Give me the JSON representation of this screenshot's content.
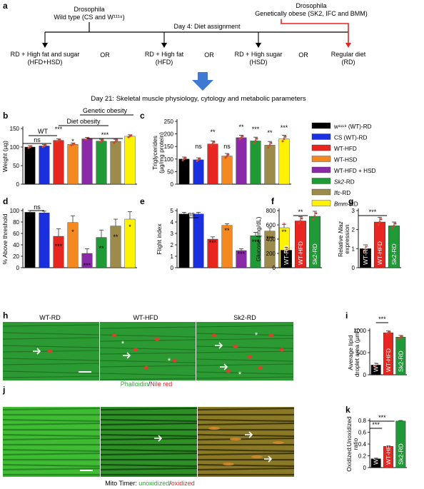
{
  "panel_letters": [
    "a",
    "b",
    "c",
    "d",
    "e",
    "f",
    "g",
    "h",
    "i",
    "j",
    "k"
  ],
  "colors": {
    "wt_rd": "#000000",
    "cs_rd": "#1a2fe0",
    "wt_hfd": "#e8251f",
    "wt_hsd": "#f5891f",
    "wt_hfd_hsd": "#8a2aa8",
    "sk2_rd": "#1f9a37",
    "ifc_rd": "#9c8b4a",
    "bmm_rd": "#fff200",
    "error_dots": "#e8251f",
    "arrow_blue": "#3f79d1",
    "flow_red": "#e8251f",
    "muscle_green": "#2c9a33",
    "lipid_red": "#d2452c"
  },
  "panel_a": {
    "left_group": [
      "Drosophila",
      "Wild type (CS and W¹¹¹⁸)"
    ],
    "right_group": [
      "Drosophila",
      "Genetically obese (SK2, IFC and BMM)"
    ],
    "day4": "Day 4: Diet assignment",
    "diets": [
      "RD + High fat and sugar",
      "(HFD+HSD)",
      "RD + High fat",
      "(HFD)",
      "RD + High sugar",
      "(HSD)",
      "Regular diet",
      "(RD)"
    ],
    "or_label": "OR",
    "day21": "Day 21: Skeletal muscle physiology, cytology and metabolic parameters"
  },
  "legend": {
    "items": [
      {
        "label": "w¹¹¹⁸ (WT)-RD",
        "color": "#000000"
      },
      {
        "label": "CS (WT)-RD",
        "color": "#1a2fe0"
      },
      {
        "label": "WT-HFD",
        "color": "#e8251f"
      },
      {
        "label": "WT-HSD",
        "color": "#f5891f"
      },
      {
        "label": "WT-HFD + HSD",
        "color": "#8a2aa8"
      },
      {
        "label": "Sk2-RD",
        "color": "#1f9a37"
      },
      {
        "label": "Ifc-RD",
        "color": "#9c8b4a"
      },
      {
        "label": "Bmm-RD",
        "color": "#fff200"
      }
    ]
  },
  "panel_b_annotations": {
    "wt": "WT",
    "diet_obesity": "Diet obesity",
    "genetic_obesity": "Genetic obesity"
  },
  "panel_h": {
    "labels": [
      "WT-RD",
      "WT-HFD",
      "Sk2-RD"
    ],
    "stain_green": "Phalloidin",
    "stain_sep": "/",
    "stain_red": "Nile red"
  },
  "panel_j": {
    "label_prefix": "Mito Timer: ",
    "label_green": "unoxidized",
    "label_sep": "/",
    "label_red": "oxidized"
  },
  "chart_data": [
    {
      "panel": "b",
      "type": "bar",
      "ylabel": "Weight (µg)",
      "yticks": [
        0,
        50,
        100,
        150
      ],
      "ylim": [
        0,
        150
      ],
      "categories": [
        "WT-RD",
        "CS (WT)-RD",
        "WT-HFD",
        "WT-HSD",
        "WT-HFD + HSD",
        "Sk2-RD",
        "Ifc-RD",
        "Bmm-RD"
      ],
      "values": [
        100,
        103,
        118,
        107,
        122,
        116,
        115,
        129
      ],
      "errors": [
        4,
        4,
        4,
        4,
        4,
        5,
        6,
        4
      ],
      "significance": [
        "ns",
        "***",
        "*",
        "***"
      ]
    },
    {
      "panel": "c",
      "type": "bar",
      "ylabel": "Triglycerides (µg/mg protein)",
      "yticks": [
        0,
        50,
        100,
        150,
        200,
        250
      ],
      "ylim": [
        0,
        250
      ],
      "categories": [
        "WT-RD",
        "CS (WT)-RD",
        "WT-HFD",
        "WT-HSD",
        "WT-HFD + HSD",
        "Sk2-RD",
        "Ifc-RD",
        "Bmm-RD"
      ],
      "values": [
        100,
        97,
        160,
        112,
        185,
        172,
        155,
        180
      ],
      "errors": [
        8,
        8,
        12,
        10,
        10,
        15,
        15,
        15
      ],
      "significance": [
        "ns",
        "**",
        "ns",
        "**",
        "***",
        "**",
        "***"
      ]
    },
    {
      "panel": "d",
      "type": "bar",
      "ylabel": "% Above threshold",
      "yticks": [
        0,
        20,
        40,
        60,
        80,
        100
      ],
      "ylim": [
        0,
        100
      ],
      "categories": [
        "WT-RD",
        "CS (WT)-RD",
        "WT-HFD",
        "WT-HSD",
        "WT-HFD + HSD",
        "Sk2-RD",
        "Ifc-RD",
        "Bmm-RD"
      ],
      "values": [
        97,
        96,
        55,
        79,
        25,
        53,
        73,
        85
      ],
      "errors": [
        3,
        3,
        13,
        12,
        8,
        13,
        12,
        13
      ],
      "significance": [
        "ns",
        "***",
        "*",
        "***",
        "**",
        "**",
        "*"
      ]
    },
    {
      "panel": "e",
      "type": "bar",
      "ylabel": "Flight index",
      "yticks": [
        0,
        1,
        2,
        3,
        4,
        5
      ],
      "ylim": [
        0,
        5
      ],
      "categories": [
        "WT-RD",
        "CS (WT)-RD",
        "WT-HFD",
        "WT-HSD",
        "WT-HFD + HSD",
        "Sk2-RD",
        "Ifc-RD",
        "Bmm-RD"
      ],
      "values": [
        4.7,
        4.7,
        2.5,
        3.7,
        1.5,
        2.8,
        3.2,
        3.5
      ],
      "errors": [
        0.15,
        0.15,
        0.2,
        0.15,
        0.15,
        0.3,
        0.3,
        0.3
      ],
      "significance": [
        "ns",
        "***",
        "**",
        "***",
        "***",
        "***",
        "**",
        "*"
      ]
    },
    {
      "panel": "f",
      "type": "bar",
      "ylabel": "Glucose (mg/dL)",
      "yticks": [
        0,
        200,
        400,
        600,
        800
      ],
      "ylim": [
        0,
        800
      ],
      "categories": [
        "WT-RD",
        "WT-HFD",
        "Sk2-RD"
      ],
      "values": [
        245,
        655,
        720
      ],
      "errors": [
        40,
        60,
        70
      ],
      "significance": [
        "**"
      ]
    },
    {
      "panel": "g",
      "type": "bar",
      "ylabel": "Relative Nlaz expression",
      "yticks": [
        0,
        1,
        2,
        3
      ],
      "ylim": [
        0,
        3
      ],
      "categories": [
        "WT-RD",
        "WT-HFD",
        "Sk2-RD"
      ],
      "values": [
        1.0,
        2.4,
        2.2
      ],
      "errors": [
        0.2,
        0.25,
        0.2
      ],
      "significance": [
        "***"
      ]
    },
    {
      "panel": "i",
      "type": "bar",
      "ylabel": "Average lipid droplet area (µm²)",
      "yticks": [
        0,
        500,
        1000
      ],
      "ylim": [
        0,
        1000
      ],
      "categories": [
        "WT-RD",
        "WT-HFD",
        "Sk2-RD"
      ],
      "values": [
        220,
        950,
        850
      ],
      "errors": [
        40,
        40,
        40
      ],
      "significance": [
        "***"
      ]
    },
    {
      "panel": "k",
      "type": "bar",
      "ylabel": "Oxidized:Unoxidized ratio",
      "yticks": [
        0.0,
        0.2,
        0.4,
        0.6,
        0.8
      ],
      "ylim": [
        0,
        0.8
      ],
      "categories": [
        "WT-RD",
        "WT-HFD",
        "Sk2-RD"
      ],
      "values": [
        0.15,
        0.36,
        0.79
      ],
      "errors": [
        0.01,
        0.01,
        0.01
      ],
      "significance": [
        "***",
        "***"
      ]
    }
  ]
}
